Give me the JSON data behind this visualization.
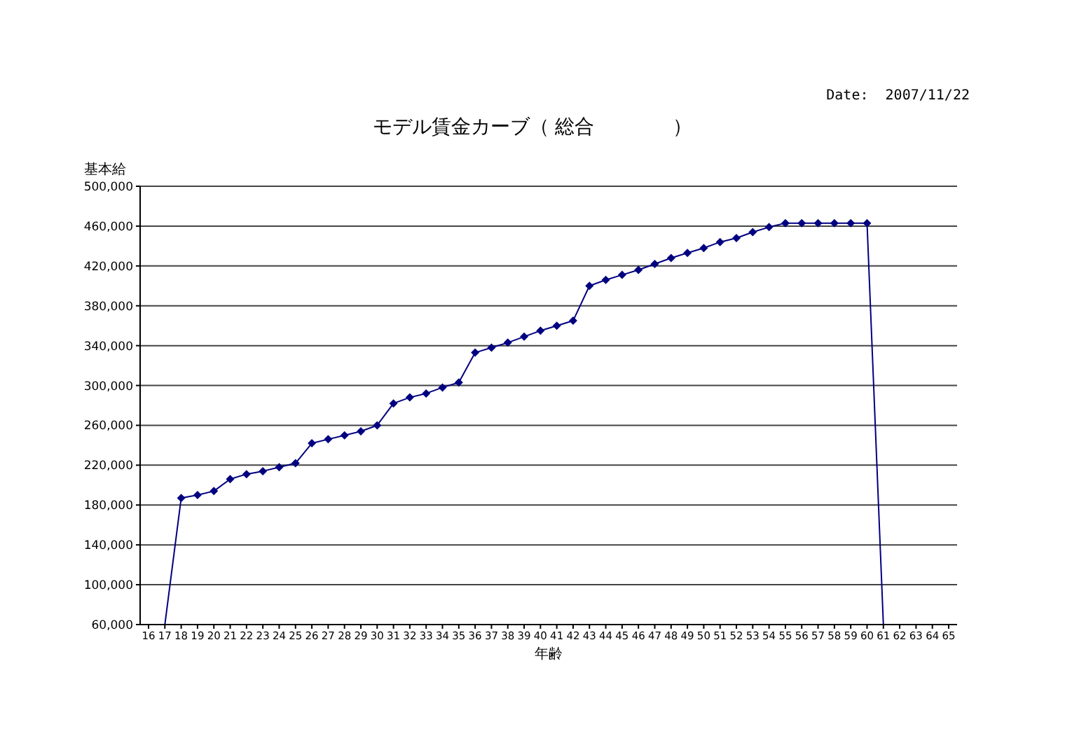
{
  "chart_data": {
    "type": "line",
    "title": "モデル賃金カーブ（ 総合　　　　）",
    "xlabel": "年齢",
    "ylabel": "基本給",
    "annotations": [
      "Date:  2007/11/22"
    ],
    "categories": [
      "16",
      "17",
      "18",
      "19",
      "20",
      "21",
      "22",
      "23",
      "24",
      "25",
      "26",
      "27",
      "28",
      "29",
      "30",
      "31",
      "32",
      "33",
      "34",
      "35",
      "36",
      "37",
      "38",
      "39",
      "40",
      "41",
      "42",
      "43",
      "44",
      "45",
      "46",
      "47",
      "48",
      "49",
      "50",
      "51",
      "52",
      "53",
      "54",
      "55",
      "56",
      "57",
      "58",
      "59",
      "60",
      "61",
      "62",
      "63",
      "64",
      "65"
    ],
    "series": [
      {
        "color": "#000080",
        "values": [
          null,
          60000,
          187000,
          190000,
          194000,
          206000,
          211000,
          214000,
          218000,
          222000,
          242000,
          246000,
          250000,
          254000,
          260000,
          282000,
          288000,
          292000,
          298000,
          303000,
          333000,
          338000,
          343000,
          349000,
          355000,
          360000,
          365000,
          400000,
          406000,
          411000,
          416000,
          422000,
          428000,
          433000,
          438000,
          444000,
          448000,
          454000,
          459000,
          463000,
          463000,
          463000,
          463000,
          463000,
          463000,
          60000,
          null,
          null,
          null,
          null
        ]
      }
    ],
    "ylim": [
      60000,
      500000
    ],
    "yticks": [
      {
        "value": 60000,
        "label": "60,000"
      },
      {
        "value": 100000,
        "label": "100,000"
      },
      {
        "value": 140000,
        "label": "140,000"
      },
      {
        "value": 180000,
        "label": "180,000"
      },
      {
        "value": 220000,
        "label": "220,000"
      },
      {
        "value": 260000,
        "label": "260,000"
      },
      {
        "value": 300000,
        "label": "300,000"
      },
      {
        "value": 340000,
        "label": "340,000"
      },
      {
        "value": 380000,
        "label": "380,000"
      },
      {
        "value": 420000,
        "label": "420,000"
      },
      {
        "value": 460000,
        "label": "460,000"
      },
      {
        "value": 500000,
        "label": "500,000"
      }
    ],
    "grid": "y",
    "marker": "diamond",
    "line_style": "solid"
  }
}
